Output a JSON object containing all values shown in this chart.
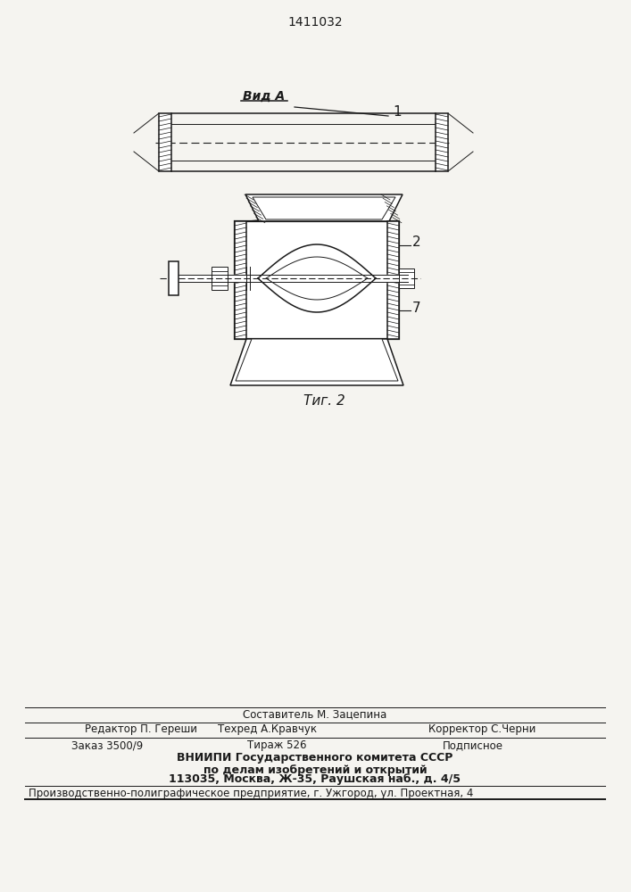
{
  "title": "1411032",
  "fig_label": "Τиг. 2",
  "view_label": "Вид A",
  "label_1": "1",
  "label_2": "2",
  "label_7": "7",
  "bg_color": "#f5f4f0",
  "line_color": "#1a1a1a",
  "footer_lines": [
    "Составитель М. Зацепина",
    "Редактор П. Гереши",
    "Техред А.Кравчук",
    "Корректор С.Черни",
    "Заказ 3500/9",
    "Тираж 526",
    "Подписное",
    "ВНИИПИ Государственного комитета СССР",
    "по делам изобретений и открытий",
    "113035, Москва, Ж-35, Раушская наб., д. 4/5",
    "Производственно-полиграфическое предприятие, г. Ужгород, ул. Проектная, 4"
  ]
}
